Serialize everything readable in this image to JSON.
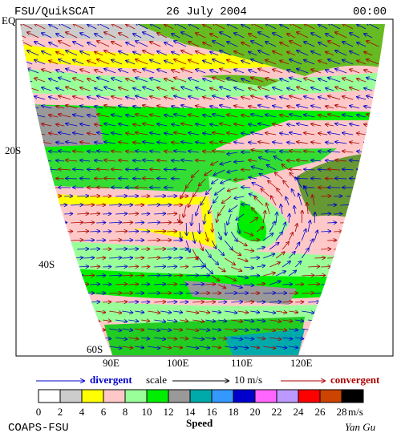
{
  "header": {
    "left": "FSU/QuikSCAT",
    "center": "26 July 2004",
    "right": "00:00"
  },
  "map": {
    "lat_labels": [
      "EQ",
      "20S",
      "40S",
      "60S"
    ],
    "lon_labels": [
      "90E",
      "100E",
      "110E",
      "120E"
    ]
  },
  "legend": {
    "divergent": "divergent",
    "scale": "scale",
    "scale_value": "10 m/s",
    "convergent": "convergent"
  },
  "colorbar": {
    "labels": [
      "0",
      "2",
      "4",
      "6",
      "8",
      "10",
      "12",
      "14",
      "16",
      "18",
      "20",
      "22",
      "24",
      "26",
      "28"
    ],
    "unit": "m/s",
    "title": "Speed"
  },
  "credits": {
    "left": "COAPS-FSU",
    "right": "Yan Gu"
  }
}
